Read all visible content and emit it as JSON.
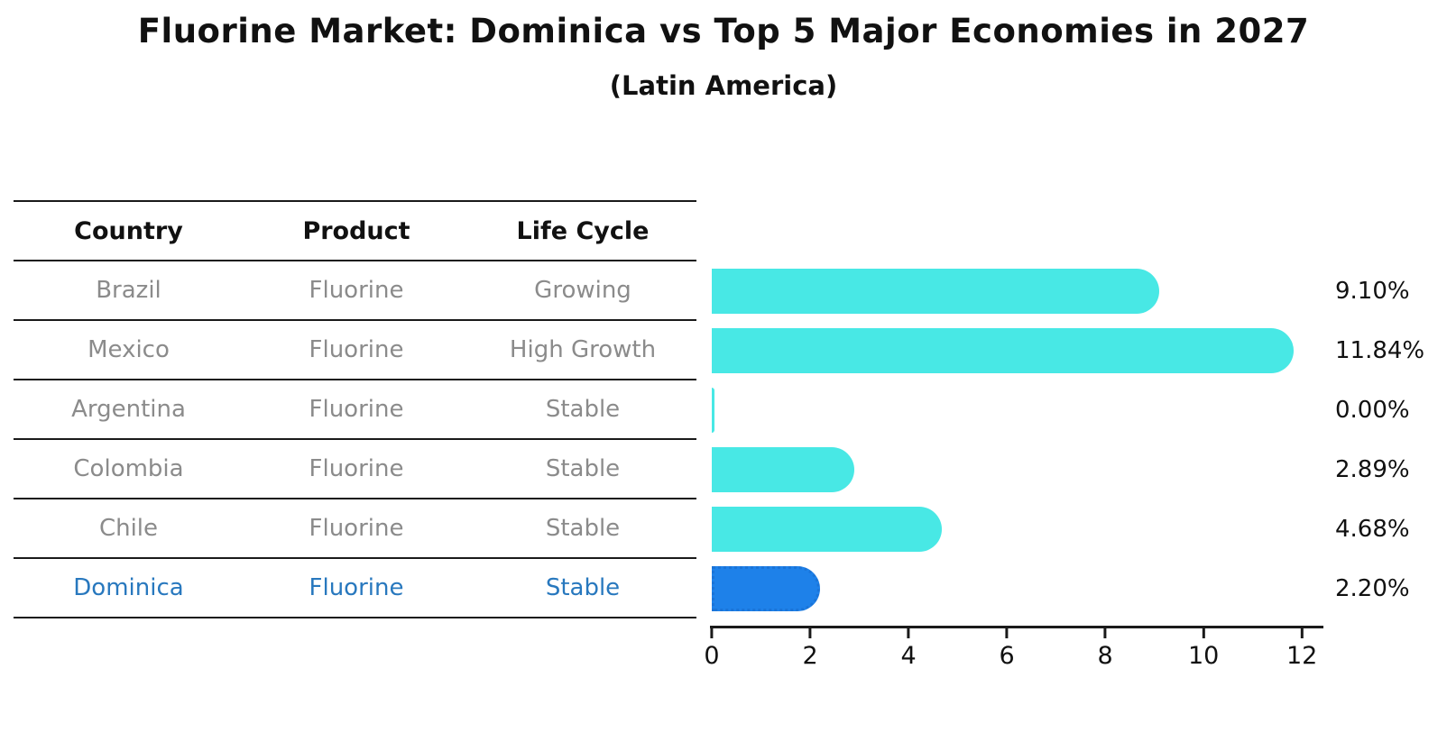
{
  "title": "Fluorine Market: Dominica vs Top 5 Major Economies in 2027",
  "subtitle": "(Latin America)",
  "table": {
    "headers": [
      "Country",
      "Product",
      "Life Cycle"
    ],
    "rows": [
      {
        "country": "Brazil",
        "product": "Fluorine",
        "life_cycle": "Growing",
        "highlight": false
      },
      {
        "country": "Mexico",
        "product": "Fluorine",
        "life_cycle": "High Growth",
        "highlight": false
      },
      {
        "country": "Argentina",
        "product": "Fluorine",
        "life_cycle": "Stable",
        "highlight": false
      },
      {
        "country": "Colombia",
        "product": "Fluorine",
        "life_cycle": "Stable",
        "highlight": false
      },
      {
        "country": "Chile",
        "product": "Fluorine",
        "life_cycle": "Stable",
        "highlight": false
      },
      {
        "country": "Dominica",
        "product": "Fluorine",
        "life_cycle": "Stable",
        "highlight": true
      }
    ]
  },
  "chart_data": {
    "type": "bar",
    "orientation": "horizontal",
    "title": "Fluorine Market: Dominica vs Top 5 Major Economies in 2027",
    "subtitle": "(Latin America)",
    "categories": [
      "Brazil",
      "Mexico",
      "Argentina",
      "Colombia",
      "Chile",
      "Dominica"
    ],
    "values": [
      9.1,
      11.84,
      0.0,
      2.89,
      4.68,
      2.2
    ],
    "value_labels": [
      "9.10%",
      "11.84%",
      "0.00%",
      "2.89%",
      "4.68%",
      "2.20%"
    ],
    "x_ticks": [
      0,
      2,
      4,
      6,
      8,
      10,
      12
    ],
    "xlim": [
      0,
      12.4
    ],
    "grid": false,
    "legend": false,
    "highlight_index": 5
  },
  "colors": {
    "bar": "#48E8E5",
    "highlight_bar": "#1E81E9",
    "highlight_bar_border": "#1a74d8",
    "highlight_text": "#2878BE",
    "table_text": "#8b8b8b",
    "line": "#1a1a1a"
  }
}
